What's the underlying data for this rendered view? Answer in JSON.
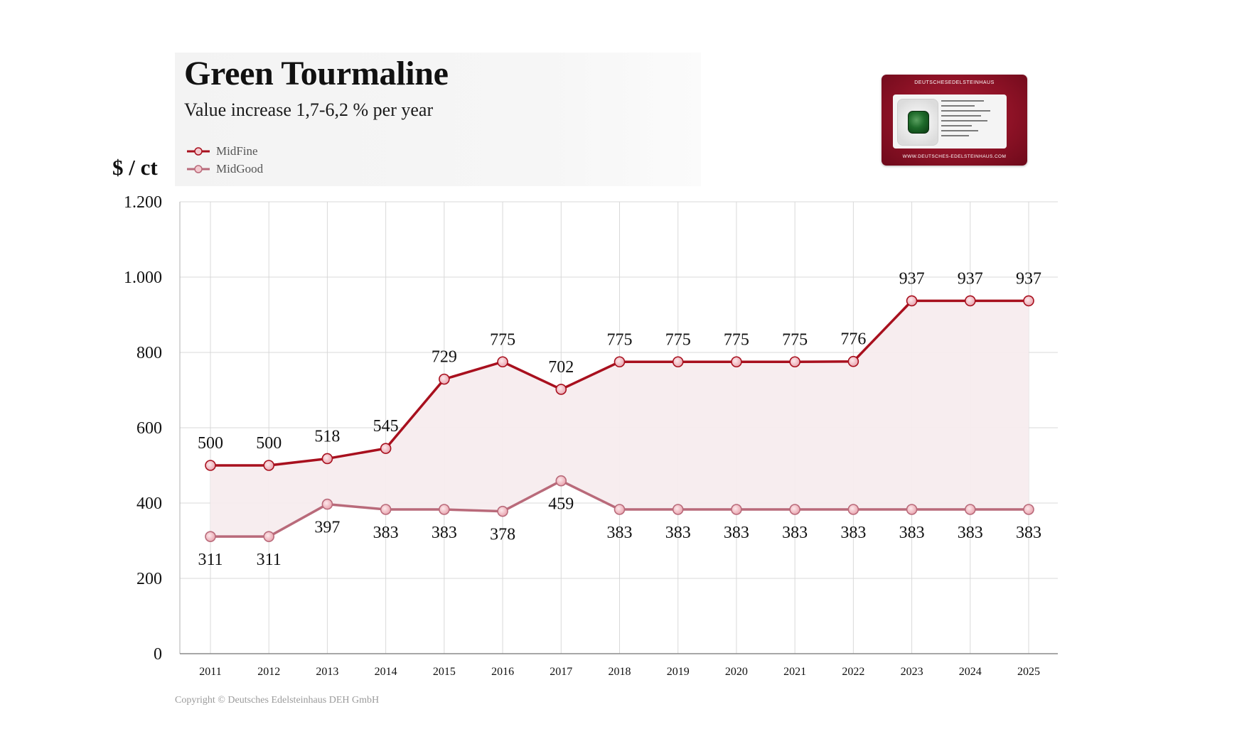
{
  "header": {
    "title": "Green Tourmaline",
    "subtitle": "Value increase 1,7-6,2 % per year",
    "unit_label": "$ / ct"
  },
  "certificate": {
    "brand_text": "DEUTSCHESEDELSTEINHAUS",
    "footer_text": "WWW.DEUTSCHES-EDELSTEINHAUS.COM"
  },
  "footer": {
    "copyright": "Copyright © Deutsches Edelsteinhaus DEH GmbH"
  },
  "colors": {
    "midfine": "#a8101e",
    "midgood": "#b96a7a",
    "fill": "#f7ecee",
    "grid": "#d9d9d9"
  },
  "chart_data": {
    "type": "line",
    "x": [
      2011,
      2012,
      2013,
      2014,
      2015,
      2016,
      2017,
      2018,
      2019,
      2020,
      2021,
      2022,
      2023,
      2024,
      2025
    ],
    "x_tick_labels": [
      "2011",
      "2012",
      "2013",
      "2014",
      "2015",
      "2016",
      "2017",
      "2018",
      "2019",
      "2020",
      "2021",
      "2022",
      "2023",
      "2024",
      "2025"
    ],
    "y_ticks": [
      0,
      200,
      400,
      600,
      800,
      1000,
      1200
    ],
    "y_tick_labels": [
      "0",
      "200",
      "400",
      "600",
      "800",
      "1.000",
      "1.200"
    ],
    "ylim": [
      0,
      1200
    ],
    "grid": true,
    "legend_position": "top-left",
    "series": [
      {
        "name": "MidFine",
        "values": [
          500,
          500,
          518,
          545,
          729,
          775,
          702,
          775,
          775,
          775,
          775,
          776,
          937,
          937,
          937
        ],
        "labels": [
          "500",
          "500",
          "518",
          "545",
          "729",
          "775",
          "702",
          "775",
          "775",
          "775",
          "775",
          "776",
          "937",
          "937",
          "937"
        ],
        "label_position": "above"
      },
      {
        "name": "MidGood",
        "values": [
          311,
          311,
          397,
          383,
          383,
          378,
          459,
          383,
          383,
          383,
          383,
          383,
          383,
          383,
          383
        ],
        "labels": [
          "311",
          "311",
          "397",
          "383",
          "383",
          "378",
          "459",
          "383",
          "383",
          "383",
          "383",
          "383",
          "383",
          "383",
          "383"
        ],
        "label_position": "below"
      }
    ]
  }
}
